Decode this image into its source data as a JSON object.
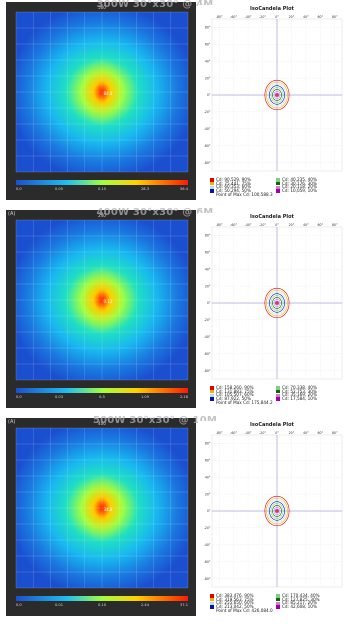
{
  "chart_data": [
    {
      "type": "heatmap",
      "overlay_title": "300W 30°x30° @ 4M",
      "heatmap": {
        "top_label": "500",
        "corner_label": "",
        "side_label": "",
        "peak_value": "84.4",
        "scale_labels": [
          "0.0",
          "0.05",
          "0.15",
          "28.3",
          "56.4"
        ]
      },
      "iso": {
        "title": "IsoCandela Plot",
        "x_ticks": [
          "-80°",
          "-60°",
          "-40°",
          "-20°",
          "0°",
          "20°",
          "40°",
          "60°",
          "80°"
        ],
        "y_ticks": [
          "80°",
          "60°",
          "40°",
          "20°",
          "0°",
          "-20°",
          "-40°",
          "-60°",
          "-80°"
        ],
        "legend": [
          {
            "label": "Cd: 90,529, 90%",
            "color": "#e00000"
          },
          {
            "label": "Cd: 75,441, 75%",
            "color": "#f0b000"
          },
          {
            "label": "Cd: 60,353, 60%",
            "color": "#b0e0f0"
          },
          {
            "label": "Cd: 50,294, 50%",
            "color": "#1010a0"
          },
          {
            "label": "Cd: 40,235, 40%",
            "color": "#80d080"
          },
          {
            "label": "Cd: 30,176, 30%",
            "color": "#007000"
          },
          {
            "label": "Cd: 20,118, 20%",
            "color": "#e070e0"
          },
          {
            "label": "Cd: 10,059, 10%",
            "color": "#a000a0"
          }
        ],
        "max_label": "Point of Max Cd: 100,588.3",
        "contour_radii_deg": [
          2,
          4,
          6,
          8,
          10,
          12,
          14,
          16
        ]
      }
    },
    {
      "type": "heatmap",
      "overlay_title": "400W 30°x30° @ 6M",
      "heatmap": {
        "top_label": "240",
        "corner_label": "(A)",
        "side_label": "",
        "peak_value": "0.12",
        "scale_labels": [
          "0.0",
          "0.03",
          "0.5",
          "1.09",
          "2.18"
        ]
      },
      "iso": {
        "title": "IsoCandela Plot",
        "x_ticks": [
          "-80°",
          "-60°",
          "-40°",
          "-20°",
          "0°",
          "20°",
          "40°",
          "60°",
          "80°"
        ],
        "y_ticks": [
          "80°",
          "60°",
          "40°",
          "20°",
          "0°",
          "-20°",
          "-40°",
          "-60°",
          "-80°"
        ],
        "legend": [
          {
            "label": "Cd: 158,260, 90%",
            "color": "#e00000"
          },
          {
            "label": "Cd: 131,883, 75%",
            "color": "#f0b000"
          },
          {
            "label": "Cd: 105,507, 60%",
            "color": "#b0e0f0"
          },
          {
            "label": "Cd: 87,922, 50%",
            "color": "#1010a0"
          },
          {
            "label": "Cd: 70,338, 40%",
            "color": "#80d080"
          },
          {
            "label": "Cd: 52,753, 30%",
            "color": "#007000"
          },
          {
            "label": "Cd: 35,169, 20%",
            "color": "#e070e0"
          },
          {
            "label": "Cd: 17,584, 10%",
            "color": "#a000a0"
          }
        ],
        "max_label": "Point of Max Cd: 175,844.2",
        "contour_radii_deg": [
          2,
          4,
          6,
          8,
          10,
          12,
          14,
          16
        ]
      }
    },
    {
      "type": "heatmap",
      "overlay_title": "500W 30°x30° @ 10M",
      "heatmap": {
        "top_label": "400",
        "corner_label": "(A)",
        "side_label": "",
        "peak_value": "34.8",
        "scale_labels": [
          "0.0",
          "0.01",
          "0.10",
          "2.44",
          "37.1"
        ]
      },
      "iso": {
        "title": "IsoCandela Plot",
        "x_ticks": [
          "-80°",
          "-60°",
          "-40°",
          "-20°",
          "0°",
          "20°",
          "40°",
          "60°",
          "80°"
        ],
        "y_ticks": [
          "80°",
          "60°",
          "40°",
          "20°",
          "0°",
          "-20°",
          "-40°",
          "-60°",
          "-80°"
        ],
        "legend": [
          {
            "label": "Cd: 383,476, 90%",
            "color": "#e00000"
          },
          {
            "label": "Cd: 319,563, 75%",
            "color": "#f0b000"
          },
          {
            "label": "Cd: 255,650, 60%",
            "color": "#b0e0f0"
          },
          {
            "label": "Cd: 213,042, 50%",
            "color": "#1010a0"
          },
          {
            "label": "Cd: 170,434, 40%",
            "color": "#80d080"
          },
          {
            "label": "Cd: 127,825, 30%",
            "color": "#007000"
          },
          {
            "label": "Cd: 85,217, 20%",
            "color": "#e070e0"
          },
          {
            "label": "Cd: 42,608, 10%",
            "color": "#a000a0"
          }
        ],
        "max_label": "Point of Max Cd: 426,084.0",
        "contour_radii_deg": [
          2,
          4,
          6,
          8,
          10,
          12,
          14,
          16
        ]
      }
    }
  ]
}
